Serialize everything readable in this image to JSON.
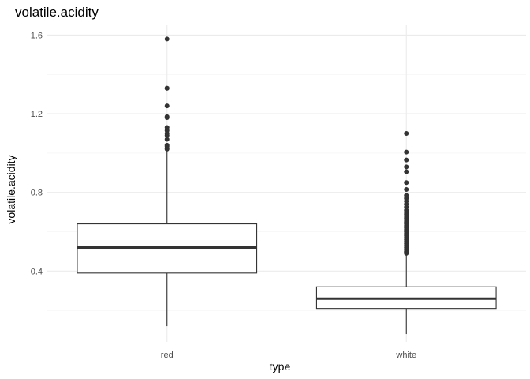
{
  "chart_data": {
    "type": "boxplot",
    "title": "volatile.acidity",
    "xlabel": "type",
    "ylabel": "volatile.acidity",
    "ylim": [
      0.04,
      1.65
    ],
    "y_ticks": [
      0.4,
      0.8,
      1.2,
      1.6
    ],
    "y_tick_labels": [
      "0.4",
      "0.8",
      "1.2",
      "1.6"
    ],
    "y_minor": [
      0.2,
      0.6,
      1.0,
      1.4
    ],
    "grid": true,
    "categories": [
      "red",
      "white"
    ],
    "boxes": [
      {
        "name": "red",
        "q1": 0.39,
        "median": 0.52,
        "q3": 0.64,
        "whisker_low": 0.12,
        "whisker_high": 1.01,
        "outliers": [
          1.58,
          1.33,
          1.33,
          1.24,
          1.18,
          1.185,
          1.13,
          1.115,
          1.1,
          1.09,
          1.07,
          1.04,
          1.035,
          1.025,
          1.02
        ]
      },
      {
        "name": "white",
        "q1": 0.21,
        "median": 0.26,
        "q3": 0.32,
        "whisker_low": 0.08,
        "whisker_high": 0.485,
        "outliers": [
          1.1,
          1.005,
          0.965,
          0.93,
          0.905,
          0.85,
          0.815,
          0.785,
          0.77,
          0.755,
          0.74,
          0.725,
          0.71,
          0.7,
          0.69,
          0.68,
          0.67,
          0.66,
          0.65,
          0.64,
          0.63,
          0.62,
          0.61,
          0.6,
          0.59,
          0.58,
          0.57,
          0.56,
          0.55,
          0.54,
          0.53,
          0.52,
          0.51,
          0.5,
          0.495,
          0.49
        ]
      }
    ]
  }
}
